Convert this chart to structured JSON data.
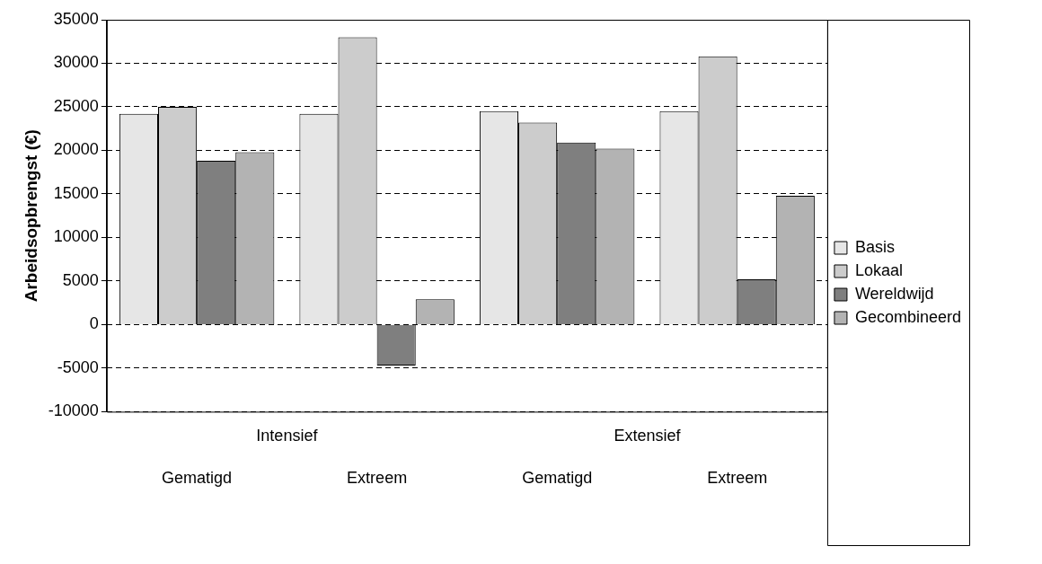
{
  "chart_data": {
    "type": "bar",
    "ylabel": "Arbeidsopbrengst (€)",
    "categories": [
      "Gematigd",
      "Extreem",
      "Gematigd",
      "Extreem"
    ],
    "annotations": [
      "Intensief",
      "Extensief"
    ],
    "series": [
      {
        "name": "Basis",
        "color": "#e6e6e6",
        "values": [
          24200,
          24200,
          24500,
          24500
        ]
      },
      {
        "name": "Lokaal",
        "color": "#cccccc",
        "values": [
          25000,
          33000,
          23200,
          30800
        ]
      },
      {
        "name": "Wereldwijd",
        "color": "#7f7f7f",
        "values": [
          18800,
          -4700,
          20900,
          5200
        ]
      },
      {
        "name": "Gecombineerd",
        "color": "#b3b3b3",
        "values": [
          19800,
          2900,
          20200,
          14800
        ]
      }
    ],
    "ylim": [
      -10000,
      35000
    ],
    "yticks": [
      -10000,
      -5000,
      0,
      5000,
      10000,
      15000,
      20000,
      25000,
      30000,
      35000
    ],
    "grid": "y",
    "legend": "right"
  }
}
